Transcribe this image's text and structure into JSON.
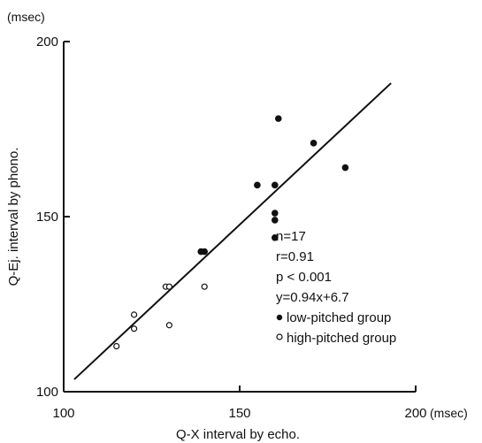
{
  "chart_data": {
    "type": "scatter",
    "title": "",
    "xlabel": "Q-X interval by echo.",
    "ylabel": "Q-Ej.  interval by phono.",
    "x_unit": "(msec)",
    "y_unit": "(msec)",
    "xlim": [
      100,
      200
    ],
    "ylim": [
      100,
      200
    ],
    "x_ticks": [
      "100",
      "150",
      "200"
    ],
    "y_ticks": [
      "100",
      "150",
      "200"
    ],
    "grid": false,
    "series": [
      {
        "name": "low-pitched group",
        "marker": "filled",
        "points": [
          [
            139,
            140
          ],
          [
            140,
            140
          ],
          [
            155,
            159
          ],
          [
            160,
            159
          ],
          [
            161,
            178
          ],
          [
            171,
            171
          ],
          [
            180,
            164
          ],
          [
            160,
            151
          ],
          [
            160,
            149
          ],
          [
            160,
            144
          ]
        ]
      },
      {
        "name": "high-pitched group",
        "marker": "open",
        "points": [
          [
            115,
            113
          ],
          [
            120,
            118
          ],
          [
            120,
            122
          ],
          [
            129,
            130
          ],
          [
            130,
            130
          ],
          [
            130,
            119
          ],
          [
            140,
            130
          ]
        ]
      }
    ],
    "regression": {
      "slope": 0.94,
      "intercept": 6.7,
      "x_range": [
        103,
        193
      ]
    },
    "annotations": [
      "n=17",
      "r=0.91",
      "p < 0.001",
      "y=0.94x+6.7"
    ]
  }
}
